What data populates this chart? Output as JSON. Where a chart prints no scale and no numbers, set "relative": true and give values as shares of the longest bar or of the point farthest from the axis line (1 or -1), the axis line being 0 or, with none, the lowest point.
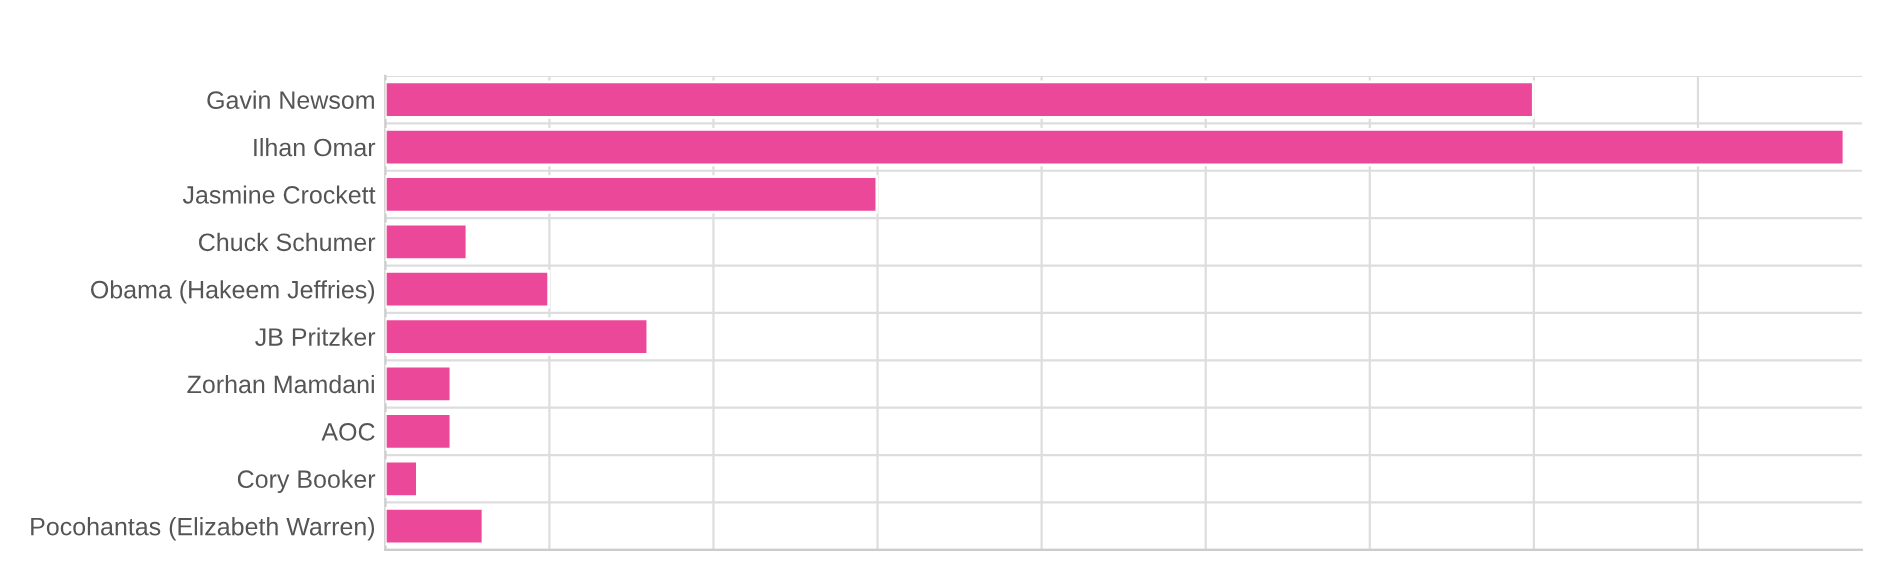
{
  "chart_data": {
    "type": "bar",
    "orientation": "horizontal",
    "relative": true,
    "grid": true,
    "categories": [
      "Gavin Newsom",
      "Ilhan Omar",
      "Jasmine Crockett",
      "Chuck Schumer",
      "Obama (Hakeem Jeffries)",
      "JB Pritzker",
      "Zorhan Mamdani",
      "AOC",
      "Cory Booker",
      "Pocohantas (Elizabeth Warren)"
    ],
    "values": [
      0.787,
      1,
      0.337,
      0.056,
      0.112,
      0.18,
      0.045,
      0.045,
      0.022,
      0.067
    ],
    "color": "#ec4899"
  }
}
